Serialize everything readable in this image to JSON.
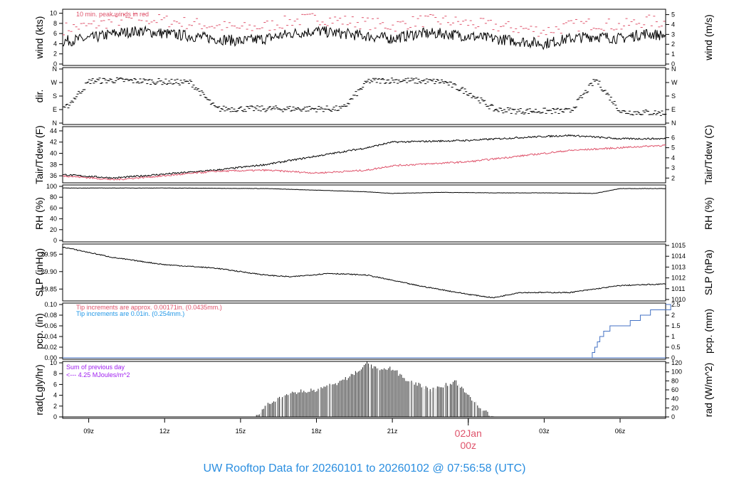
{
  "title": "UW Rooftop Data for 20260101  to  20260102 @ 07:56:58  (UTC)",
  "colors": {
    "title": "#2a8ee0",
    "red": "#df536b",
    "blue": "#2297e6",
    "purple": "#a020f0",
    "step": "#4472c4"
  },
  "chart_data": [
    {
      "type": "line",
      "name": "wind",
      "ylabel": "wind (kts)",
      "ylabel_right": "wind (m/s)",
      "ylim": [
        0,
        10.5
      ],
      "yticks": [
        "0",
        "2",
        "4",
        "6",
        "8",
        "10"
      ],
      "yticks_right": [
        "0",
        "1",
        "2",
        "3",
        "4",
        "5"
      ],
      "annotation": "10 min. peak winds in red",
      "x_hours": [
        8,
        9,
        10,
        11,
        12,
        13,
        14,
        15,
        16,
        17,
        18,
        19,
        20,
        21,
        22,
        23,
        24,
        25,
        26,
        27,
        28,
        29,
        30,
        31,
        32
      ],
      "series": [
        {
          "name": "wind speed",
          "values": [
            4.5,
            5,
            6,
            6.5,
            6,
            5.5,
            5,
            4.5,
            5,
            6,
            6.5,
            6,
            5.5,
            5,
            6,
            6,
            5.5,
            5,
            4.5,
            4,
            5,
            5.5,
            5,
            6,
            5.5
          ]
        },
        {
          "name": "peak",
          "values": [
            7,
            7.5,
            8.5,
            9,
            8.5,
            8,
            7.5,
            7,
            7.5,
            8.5,
            9,
            8.5,
            8,
            7.5,
            8.5,
            8.5,
            8,
            7.5,
            7,
            6.5,
            7.5,
            8,
            7.5,
            8.5,
            8
          ]
        }
      ]
    },
    {
      "type": "scatter",
      "name": "dir",
      "ylabel": "dir.",
      "yticks": [
        "N",
        "E",
        "S",
        "W",
        "N"
      ],
      "x_hours": [
        8,
        9,
        10,
        11,
        12,
        13,
        14,
        15,
        16,
        17,
        18,
        19,
        20,
        21,
        22,
        23,
        24,
        25,
        26,
        27,
        28,
        29,
        30,
        31,
        32
      ],
      "values": [
        90,
        280,
        285,
        280,
        275,
        270,
        95,
        95,
        95,
        95,
        95,
        95,
        280,
        285,
        280,
        275,
        200,
        90,
        80,
        80,
        80,
        290,
        75,
        70,
        65
      ]
    },
    {
      "type": "line",
      "name": "temp",
      "ylabel": "Tair/Tdew (F)",
      "ylabel_right": "Tair/Tdew (C)",
      "ylim": [
        35,
        44.5
      ],
      "yticks": [
        "36",
        "38",
        "40",
        "42",
        "44"
      ],
      "yticks_right": [
        "2",
        "3",
        "4",
        "5",
        "6"
      ],
      "x_hours": [
        8,
        10,
        12,
        14,
        16,
        18,
        20,
        21,
        24,
        26,
        28,
        30,
        32
      ],
      "series": [
        {
          "name": "Tair",
          "values": [
            36.2,
            35.6,
            36.3,
            37,
            38,
            39.5,
            41,
            42,
            42.3,
            42.8,
            43.2,
            42.6,
            42.6
          ]
        },
        {
          "name": "Tdew",
          "values": [
            36,
            35.3,
            36,
            36.8,
            37,
            36.5,
            37,
            37.8,
            38.5,
            39.5,
            40.5,
            41,
            41.5
          ]
        }
      ]
    },
    {
      "type": "line",
      "name": "rh",
      "ylabel": "RH (%)",
      "ylabel_right": "RH (%)",
      "ylim": [
        0,
        100
      ],
      "yticks": [
        "0",
        "20",
        "40",
        "60",
        "80",
        "100"
      ],
      "x_hours": [
        8,
        12,
        16,
        18,
        20,
        21,
        23,
        25,
        27,
        29,
        30,
        32
      ],
      "values": [
        97,
        97,
        96,
        93,
        90,
        87,
        89,
        88,
        88,
        87,
        96,
        96
      ]
    },
    {
      "type": "line",
      "name": "slp",
      "ylabel": "SLP (inHg)",
      "ylabel_right": "SLP (hPa)",
      "ylim": [
        29.82,
        29.975
      ],
      "yticks": [
        "29.85",
        "29.90",
        "29.95"
      ],
      "yticks_right": [
        "1010",
        "1011",
        "1012",
        "1013",
        "1014",
        "1015"
      ],
      "x_hours": [
        8,
        10,
        12,
        14,
        16,
        17,
        18.5,
        20,
        22,
        24,
        25,
        26,
        28,
        29,
        30,
        32
      ],
      "values": [
        29.97,
        29.94,
        29.92,
        29.91,
        29.89,
        29.885,
        29.895,
        29.89,
        29.86,
        29.835,
        29.825,
        29.84,
        29.84,
        29.85,
        29.86,
        29.865
      ]
    },
    {
      "type": "line",
      "name": "pcp",
      "ylabel": "pcp. (in)",
      "ylabel_right": "pcp. (mm)",
      "ylim": [
        0,
        0.1
      ],
      "yticks": [
        "0.00",
        "0.02",
        "0.04",
        "0.06",
        "0.08",
        "0.10"
      ],
      "yticks_right": [
        "0",
        "0.5",
        "1",
        "1.5",
        "2",
        "2.5"
      ],
      "notes": [
        "Tip increments are approx. 0.00171in. (0.0435mm.)",
        "Tip increments are 0.01in. (0.254mm.)"
      ],
      "x_hours": [
        8,
        28.75,
        28.9,
        29.0,
        29.1,
        29.2,
        29.35,
        29.6,
        30.0,
        30.4,
        30.8,
        31.2,
        32
      ],
      "values": [
        0,
        0,
        0.01,
        0.02,
        0.03,
        0.04,
        0.05,
        0.06,
        0.06,
        0.07,
        0.08,
        0.09,
        0.1
      ]
    },
    {
      "type": "area",
      "name": "rad",
      "ylabel": "rad(Lgly/hr)",
      "ylabel_right": "rad (W/m^2)",
      "ylim": [
        0,
        10
      ],
      "yticks": [
        "0",
        "2",
        "4",
        "6",
        "8",
        "10"
      ],
      "yticks_right": [
        "0",
        "20",
        "40",
        "60",
        "80",
        "100",
        "120"
      ],
      "notes": [
        "Sum of previous day",
        "<--- 4.25 MJoules/m^2"
      ],
      "x_hours": [
        8,
        15.6,
        16,
        17,
        18,
        19,
        20,
        20.5,
        21,
        21.5,
        22.5,
        23.5,
        24,
        24.5,
        25,
        32
      ],
      "values": [
        0,
        0,
        2,
        4.5,
        5,
        6.5,
        9.8,
        8.5,
        9,
        7,
        5,
        6.5,
        4,
        1.5,
        0,
        0
      ]
    }
  ],
  "xaxis": {
    "ticks": [
      "09z",
      "12z",
      "15z",
      "18z",
      "21z",
      "00z",
      "03z",
      "06z"
    ],
    "tick_hours": [
      9,
      12,
      15,
      18,
      21,
      24,
      27,
      30
    ],
    "day_label": "02Jan",
    "day_label_time": "00z"
  }
}
